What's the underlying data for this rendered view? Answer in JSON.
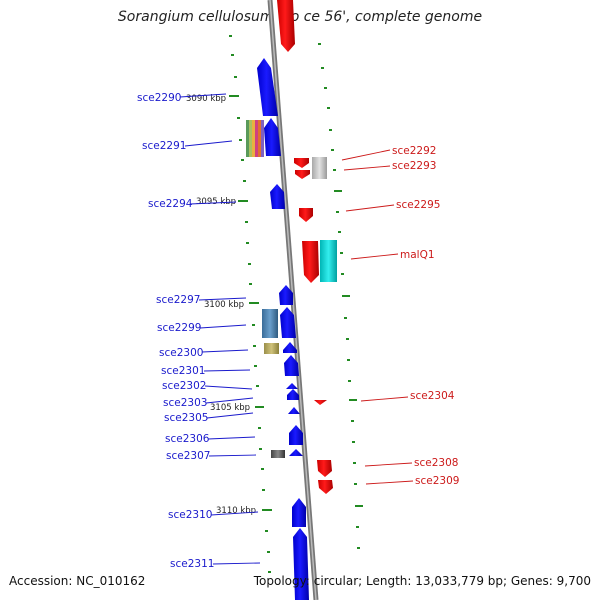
{
  "title": "Sorangium cellulosum 'So ce 56', complete genome",
  "footer": {
    "accession": "Accession: NC_010162",
    "summary": "Topology: circular; Length: 13,033,779 bp; Genes: 9,700"
  },
  "scale_labels": [
    "3090 kbp",
    "3095 kbp",
    "3100 kbp",
    "3105 kbp",
    "3110 kbp"
  ],
  "left_genes": [
    "sce2290",
    "sce2291",
    "sce2294",
    "sce2297",
    "sce2299",
    "sce2300",
    "sce2301",
    "sce2302",
    "sce2303",
    "sce2305",
    "sce2306",
    "sce2307",
    "sce2310",
    "sce2311"
  ],
  "right_genes": [
    "sce2292",
    "sce2293",
    "sce2295",
    "malQ1",
    "sce2304",
    "sce2308",
    "sce2309"
  ],
  "colors": {
    "forward": "#0000ee",
    "reverse": "#ee0000",
    "backbone": "#888888",
    "ticks": "#228b22",
    "label_blue": "#1a1acc",
    "label_red": "#cc1a1a"
  }
}
